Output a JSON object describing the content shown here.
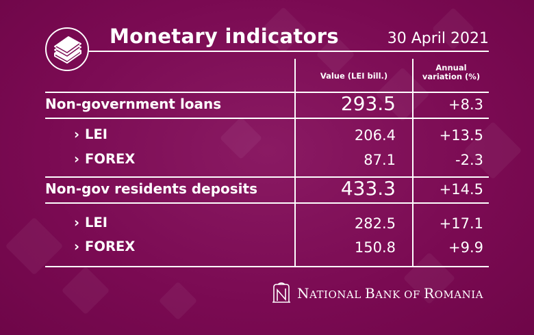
{
  "header": {
    "title": "Monetary indicators",
    "date": "30 April 2021",
    "icon": "banknotes-stack-icon"
  },
  "columns": {
    "value": "Value (LEI bill.)",
    "annual_1": "Annual",
    "annual_2": "variation (%)"
  },
  "rows": [
    {
      "label": "Non-government loans",
      "value": "293.5",
      "variation": "+8.3"
    },
    {
      "label": "LEI",
      "value": "206.4",
      "variation": "+13.5"
    },
    {
      "label": "FOREX",
      "value": "87.1",
      "variation": "-2.3"
    },
    {
      "label": "Non-gov residents deposits",
      "value": "433.3",
      "variation": "+14.5"
    },
    {
      "label": "LEI",
      "value": "282.5",
      "variation": "+17.1"
    },
    {
      "label": "FOREX",
      "value": "150.8",
      "variation": "+9.9"
    }
  ],
  "footer": {
    "logo": "nbr-monogram-logo",
    "text_n": "N",
    "text_1": "ATIONAL ",
    "text_b": "B",
    "text_2": "ANK OF ",
    "text_r": "R",
    "text_3": "OMANIA"
  },
  "colors": {
    "background": "#7d0c55",
    "text": "#ffffff"
  }
}
